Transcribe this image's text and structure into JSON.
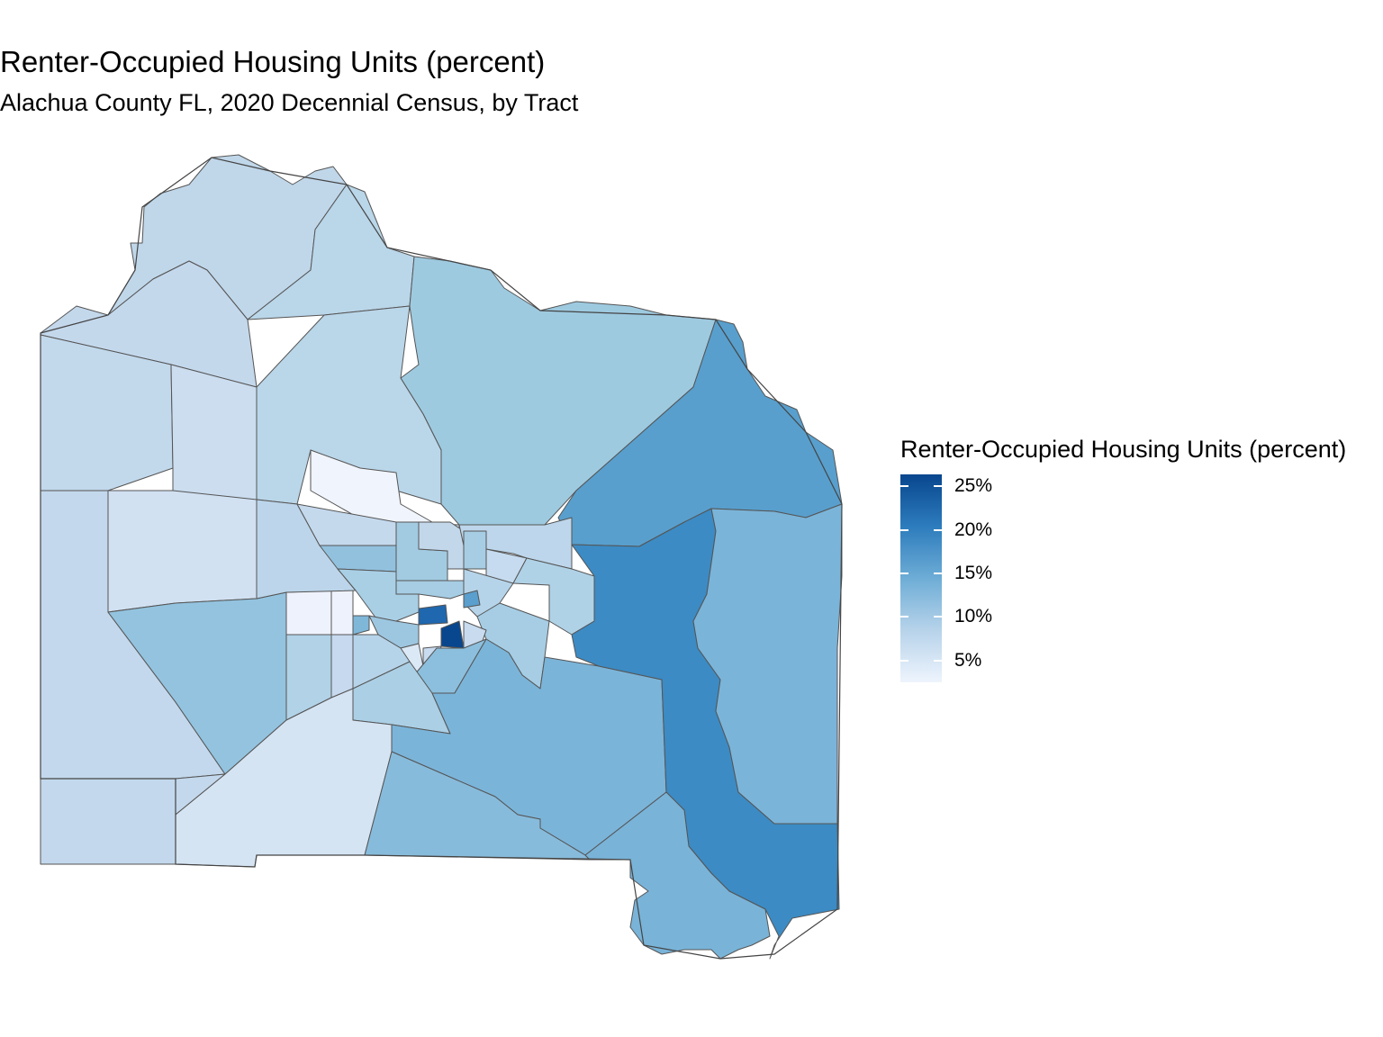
{
  "title": "Renter-Occupied Housing Units (percent)",
  "subtitle": "Alachua County FL, 2020 Decennial Census, by Tract",
  "legend": {
    "title": "Renter-Occupied Housing Units (percent)",
    "labels": [
      "25%",
      "20%",
      "15%",
      "10%",
      "5%"
    ],
    "colors": {
      "high": "#08468e",
      "low": "#eef4fd"
    }
  },
  "colors": {
    "boundary": "#555555",
    "background": "#ffffff"
  }
}
